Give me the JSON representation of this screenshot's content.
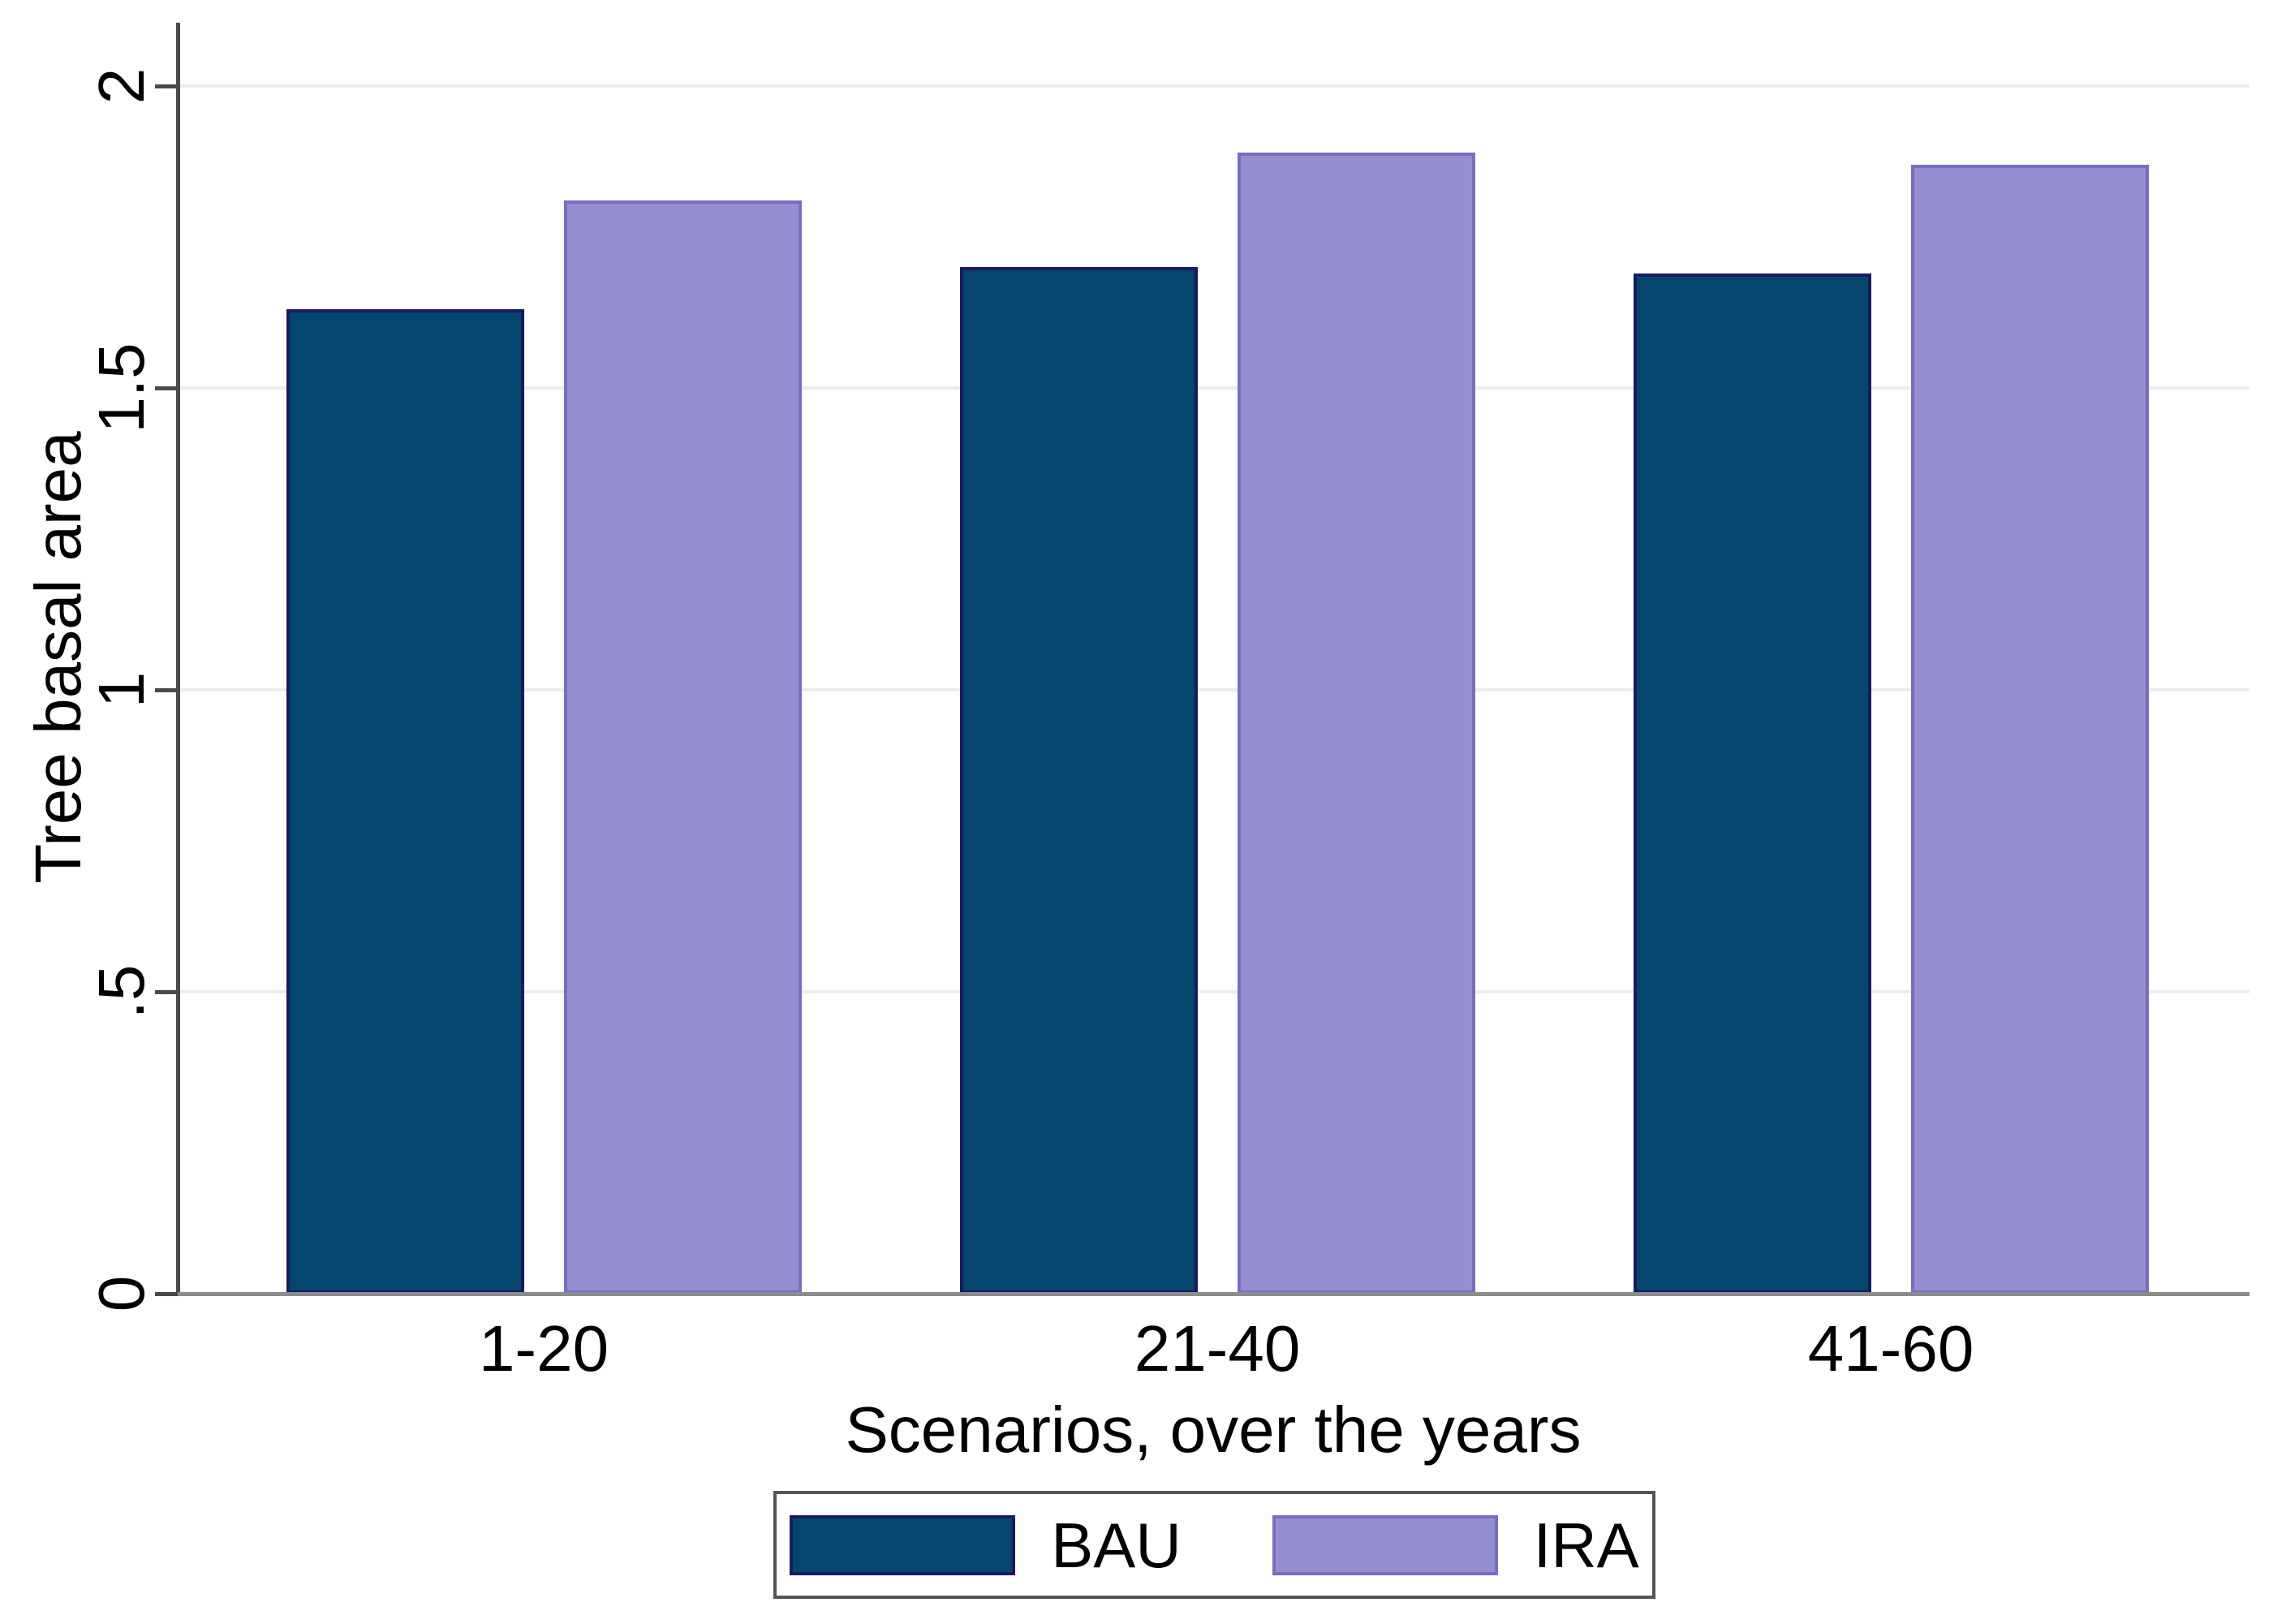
{
  "chart_data": {
    "type": "bar",
    "title": "",
    "categories": [
      "1-20",
      "21-40",
      "41-60"
    ],
    "series": [
      {
        "name": "BAU",
        "values": [
          1.63,
          1.7,
          1.69
        ],
        "color": "#04466e",
        "border_color": "#1a1a60"
      },
      {
        "name": "IRA",
        "values": [
          1.81,
          1.89,
          1.87
        ],
        "color": "#958ed1",
        "border_color": "#776dc2"
      }
    ],
    "xlabel": "Scenarios, over the years",
    "ylabel": "Tree basal area",
    "ylim": [
      0,
      2
    ],
    "yticks": [
      {
        "value": 0,
        "label": "0"
      },
      {
        "value": 0.5,
        "label": ".5"
      },
      {
        "value": 1,
        "label": "1"
      },
      {
        "value": 1.5,
        "label": "1.5"
      },
      {
        "value": 2,
        "label": "2"
      }
    ],
    "grid": true,
    "legend_position": "bottom-center",
    "tick_label_rotation": "vertical"
  },
  "colors": {
    "background": "#ffffff",
    "gridline": "#ededed",
    "y_axis": "#4a4a4a",
    "x_axis": "#8c8c8c",
    "text": "#000000",
    "legend_border": "#545454"
  }
}
